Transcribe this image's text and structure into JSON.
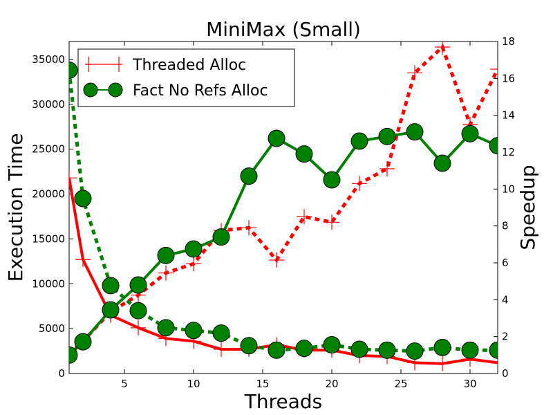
{
  "chart_data": {
    "type": "line",
    "title": "MiniMax (Small)",
    "xlabel": "Threads",
    "ylabel": "Execution Time",
    "y2label": "Speedup",
    "xlim": [
      1,
      32
    ],
    "ylim": [
      0,
      37000
    ],
    "y2lim": [
      0,
      18
    ],
    "xticks": [
      5,
      10,
      15,
      20,
      25,
      30
    ],
    "xtick_labels": [
      "5",
      "10",
      "15",
      "20",
      "25",
      "30"
    ],
    "yticks": [
      0,
      5000,
      10000,
      15000,
      20000,
      25000,
      30000,
      35000
    ],
    "ytick_labels": [
      "0",
      "5000",
      "10000",
      "15000",
      "20000",
      "25000",
      "30000",
      "35000"
    ],
    "y2ticks": [
      0,
      2,
      4,
      6,
      8,
      10,
      12,
      14,
      16,
      18
    ],
    "y2tick_labels": [
      "0",
      "2",
      "4",
      "6",
      "8",
      "10",
      "12",
      "14",
      "16",
      "18"
    ],
    "grid": false,
    "legend_position": "upper-left",
    "series": [
      {
        "name": "Threaded Alloc",
        "color": "#ff0000",
        "marker": "plus",
        "time": {
          "x": [
            1,
            2,
            4,
            6,
            8,
            10,
            12,
            14,
            16,
            18,
            20,
            22,
            24,
            26,
            28,
            30,
            32
          ],
          "y": [
            21800,
            12700,
            6500,
            5100,
            3900,
            3600,
            2700,
            2700,
            3200,
            2600,
            2600,
            2000,
            1900,
            1200,
            1100,
            1600,
            1200
          ]
        },
        "speedup": {
          "x": [
            1,
            2,
            4,
            6,
            8,
            10,
            12,
            14,
            16,
            18,
            20,
            22,
            24,
            26,
            28,
            30,
            32
          ],
          "y": [
            1.0,
            1.75,
            3.35,
            4.25,
            5.45,
            5.95,
            7.75,
            7.9,
            6.15,
            8.5,
            8.2,
            10.3,
            11.1,
            16.3,
            17.7,
            13.5,
            16.5
          ]
        }
      },
      {
        "name": "Fact No Refs Alloc",
        "color": "#008000",
        "marker": "circle",
        "time": {
          "x": [
            1,
            2,
            4,
            6,
            8,
            10,
            12,
            14,
            16,
            18,
            20,
            22,
            24,
            26,
            28,
            30,
            32
          ],
          "y": [
            33800,
            19500,
            9800,
            7000,
            5100,
            4800,
            4500,
            3100,
            2600,
            2800,
            3200,
            2700,
            2600,
            2500,
            2900,
            2600,
            2600
          ]
        },
        "speedup": {
          "x": [
            1,
            2,
            4,
            6,
            8,
            10,
            12,
            14,
            16,
            18,
            20,
            22,
            24,
            26,
            28,
            30,
            32
          ],
          "y": [
            1.0,
            1.72,
            3.45,
            4.8,
            6.4,
            6.75,
            7.4,
            10.7,
            12.75,
            11.9,
            10.5,
            12.6,
            12.85,
            13.1,
            11.4,
            13.0,
            12.35
          ]
        }
      }
    ]
  }
}
